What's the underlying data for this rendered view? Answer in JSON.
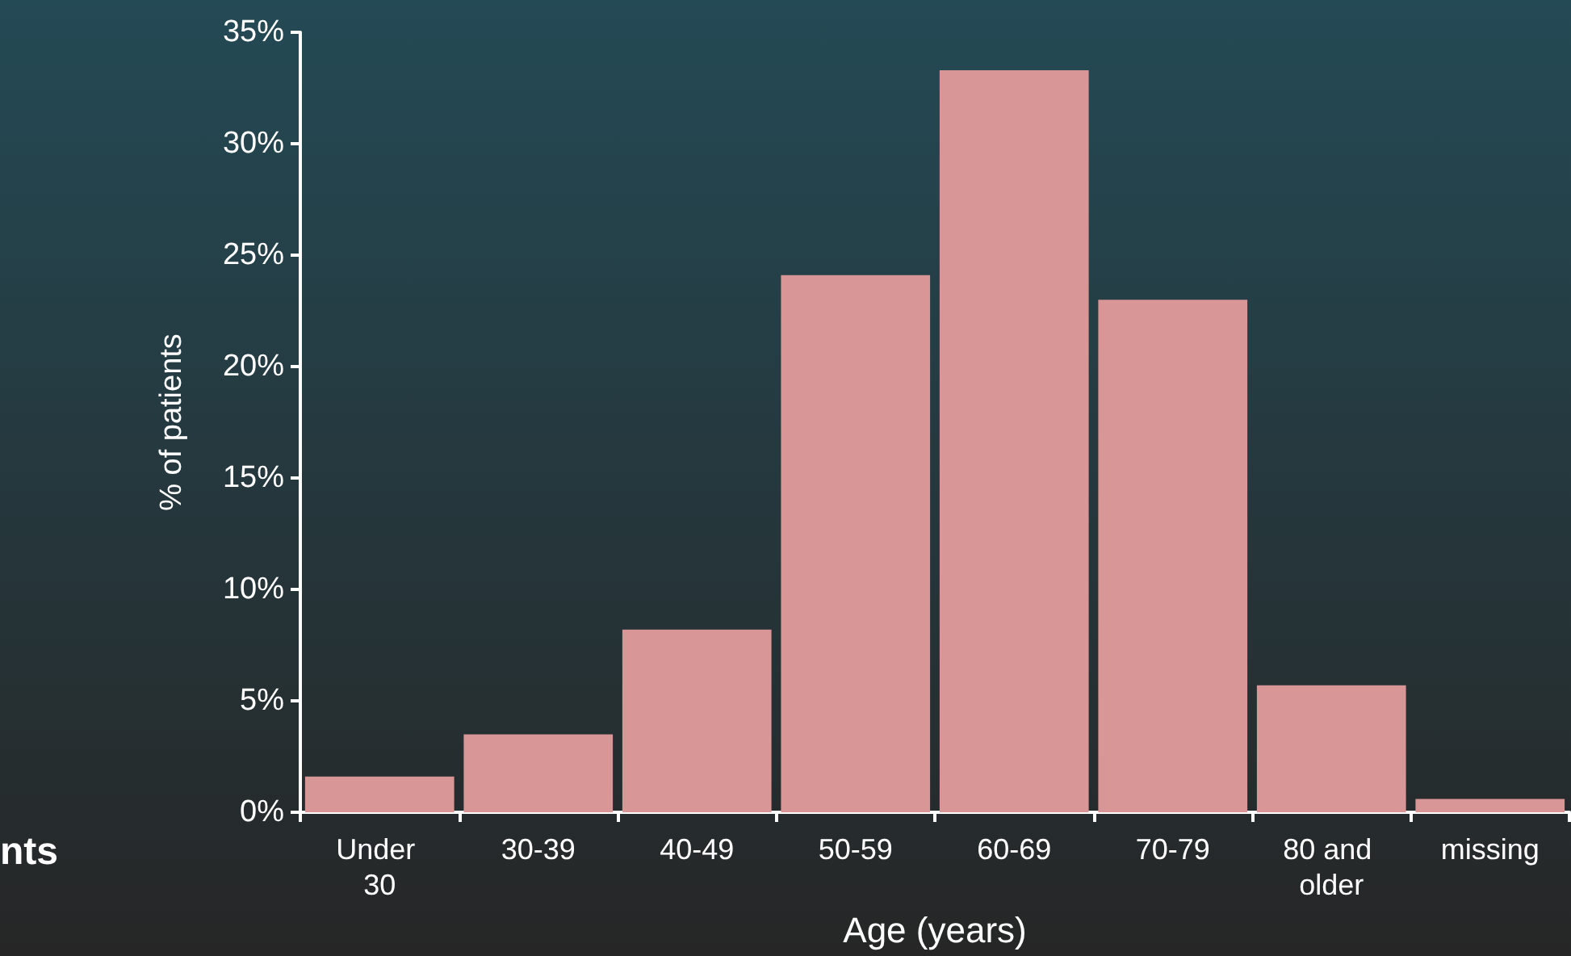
{
  "chart_data": {
    "type": "bar",
    "xlabel": "Age (years)",
    "ylabel": "% of patients",
    "categories": [
      "Under 30",
      "30-39",
      "40-49",
      "50-59",
      "60-69",
      "70-79",
      "80 and older",
      "missing"
    ],
    "values": [
      1.6,
      3.5,
      8.2,
      24.1,
      33.3,
      23.0,
      5.7,
      0.6
    ],
    "color": "#d99696",
    "ylim": [
      0,
      35
    ],
    "yticks": [
      {
        "value": 0,
        "label": "0%"
      },
      {
        "value": 5,
        "label": "5%"
      },
      {
        "value": 10,
        "label": "10%"
      },
      {
        "value": 15,
        "label": "15%"
      },
      {
        "value": 20,
        "label": "20%"
      },
      {
        "value": 25,
        "label": "25%"
      },
      {
        "value": 30,
        "label": "30%"
      },
      {
        "value": 35,
        "label": "35%"
      }
    ],
    "grid": false,
    "annotations": [
      "nts"
    ]
  }
}
